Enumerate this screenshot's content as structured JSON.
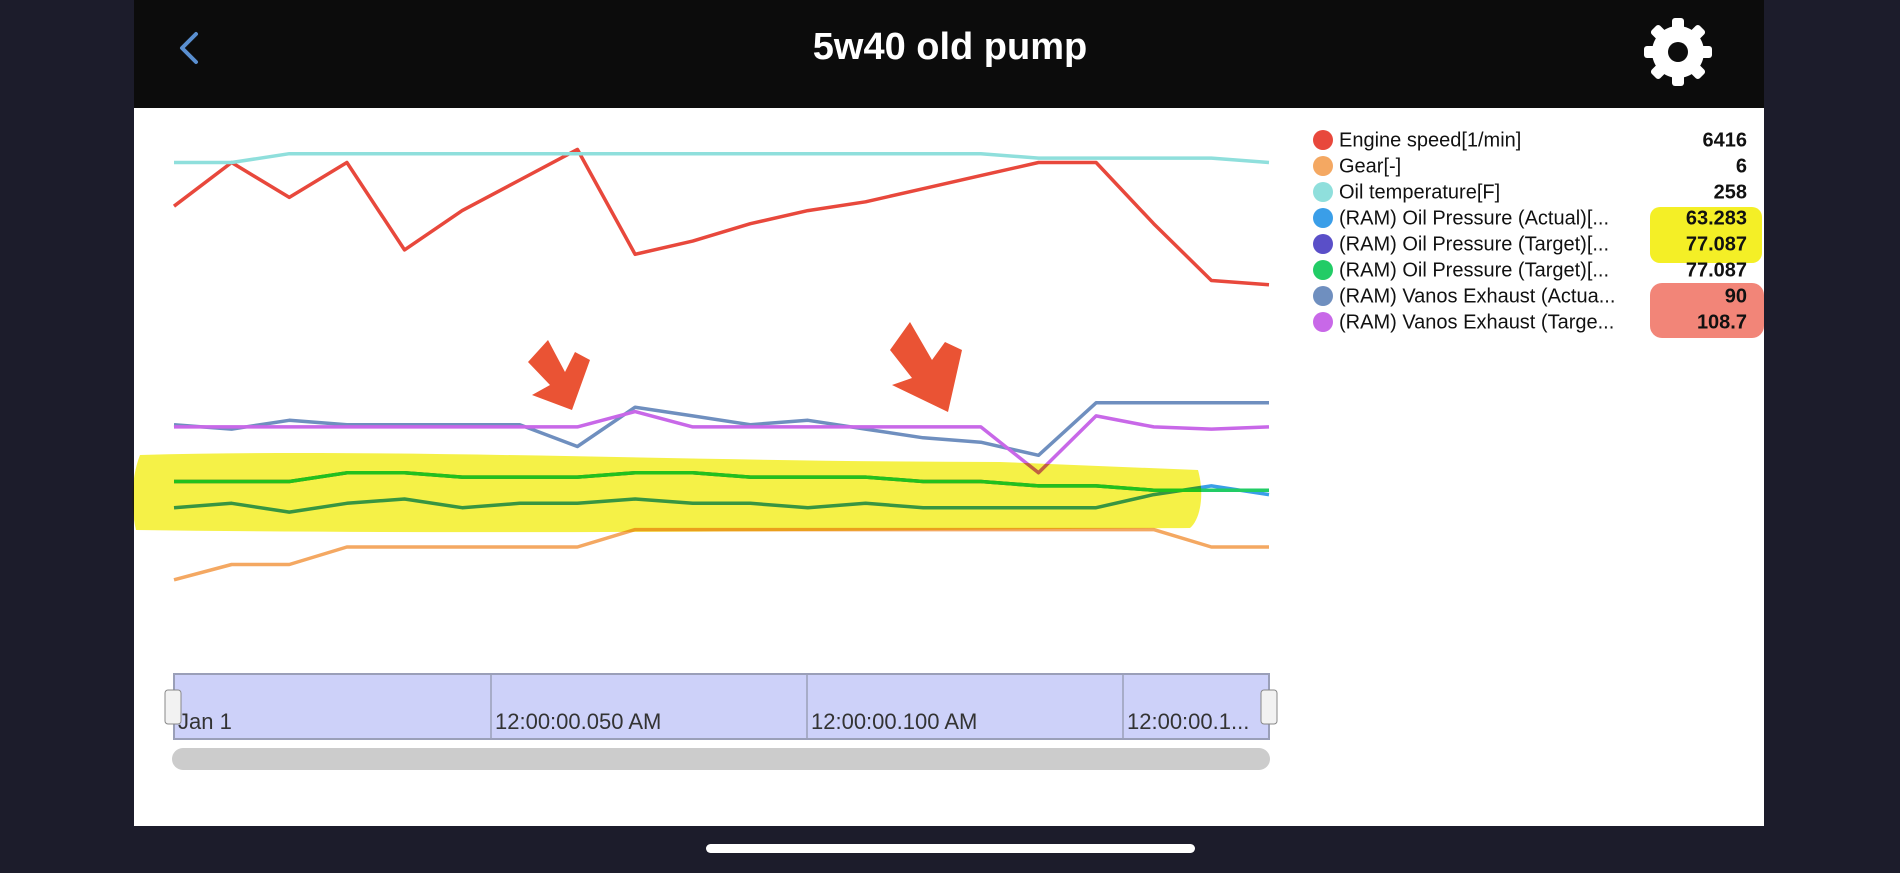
{
  "header": {
    "title": "5w40 old pump"
  },
  "chart_data": {
    "type": "line",
    "ylim": [
      0,
      100
    ],
    "navigator_labels": [
      "Jan 1",
      "12:00:00.050 AM",
      "12:00:00.100 AM",
      "12:00:00.1..."
    ],
    "series": [
      {
        "name": "Engine speed[1/min]",
        "color": "#e8483c",
        "current": 6416,
        "values": [
          86,
          96,
          88,
          96,
          76,
          85,
          92,
          99,
          75,
          78,
          82,
          85,
          87,
          90,
          93,
          96,
          96,
          82,
          69,
          68
        ]
      },
      {
        "name": "Gear[-]",
        "color": "#f4a862",
        "current": 6,
        "values": [
          0.5,
          4,
          4,
          8,
          8,
          8,
          8,
          8,
          12,
          12,
          12,
          12,
          12,
          12,
          12,
          12,
          12,
          12,
          8,
          8
        ]
      },
      {
        "name": "Oil temperature[F]",
        "color": "#8fdfdc",
        "current": 258,
        "values": [
          96,
          96,
          98,
          98,
          98,
          98,
          98,
          98,
          98,
          98,
          98,
          98,
          98,
          98,
          98,
          97,
          97,
          97,
          97,
          96
        ]
      },
      {
        "name": "(RAM) Oil Pressure (Actual)[...",
        "color": "#3a9ee8",
        "current": 63.283,
        "values": [
          17,
          18,
          16,
          18,
          19,
          17,
          18,
          18,
          19,
          18,
          18,
          17,
          18,
          17,
          17,
          17,
          17,
          20,
          22,
          20
        ]
      },
      {
        "name": "(RAM) Oil Pressure (Target)[...",
        "color": "#5a4fc8",
        "current": 77.087,
        "values": [
          23,
          23,
          23,
          25,
          25,
          24,
          24,
          24,
          25,
          25,
          24,
          24,
          24,
          23,
          23,
          22,
          22,
          21,
          21,
          21
        ]
      },
      {
        "name": "(RAM) Oil Pressure (Target)[...",
        "color": "#22cc66",
        "current": 77.087,
        "values": [
          23,
          23,
          23,
          25,
          25,
          24,
          24,
          24,
          25,
          25,
          24,
          24,
          24,
          23,
          23,
          22,
          22,
          21,
          21,
          21
        ]
      },
      {
        "name": "(RAM) Vanos Exhaust (Actua...",
        "color": "#6f8fbf",
        "current": 90,
        "values": [
          36,
          35,
          37,
          36,
          36,
          36,
          36,
          31,
          40,
          38,
          36,
          37,
          35,
          33,
          32,
          29,
          41,
          41,
          41,
          41
        ]
      },
      {
        "name": "(RAM) Vanos Exhaust (Targe...",
        "color": "#c868e8",
        "current": 108.7,
        "values": [
          35.5,
          35.5,
          35.5,
          35.5,
          35.5,
          35.5,
          35.5,
          35.5,
          39,
          35.5,
          35.5,
          35.5,
          35.5,
          35.5,
          35.5,
          25,
          38,
          35.5,
          35,
          35.5
        ]
      }
    ]
  }
}
